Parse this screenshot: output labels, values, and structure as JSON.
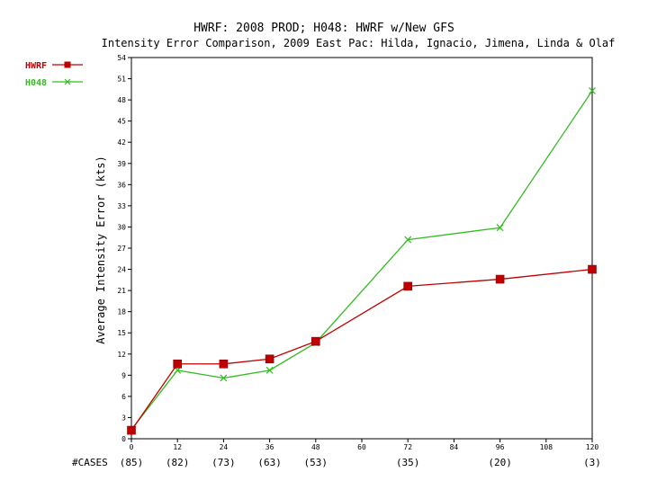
{
  "title": "HWRF: 2008 PROD; H048: HWRF w/New GFS",
  "subtitle": "Intensity Error Comparison, 2009 East Pac: Hilda, Ignacio, Jimena, Linda & Olaf",
  "chart_data": {
    "type": "line",
    "title": "HWRF: 2008 PROD; H048: HWRF w/New GFS",
    "subtitle": "Intensity Error Comparison, 2009 East Pac: Hilda, Ignacio, Jimena, Linda & Olaf",
    "xlabel": "",
    "ylabel": "Average Intensity Error (kts)",
    "x_ticks": [
      0,
      12,
      24,
      36,
      48,
      60,
      72,
      84,
      96,
      108,
      120
    ],
    "y_ticks": [
      0,
      3,
      6,
      9,
      12,
      15,
      18,
      21,
      24,
      27,
      30,
      33,
      36,
      39,
      42,
      45,
      48,
      51,
      54
    ],
    "xlim": [
      0,
      120
    ],
    "ylim": [
      0,
      54
    ],
    "grid": false,
    "legend_position": "top-left",
    "cases_label": "#CASES",
    "cases": [
      {
        "x": 0,
        "label": "(85)"
      },
      {
        "x": 12,
        "label": "(82)"
      },
      {
        "x": 24,
        "label": "(73)"
      },
      {
        "x": 36,
        "label": "(63)"
      },
      {
        "x": 48,
        "label": "(53)"
      },
      {
        "x": 72,
        "label": "(35)"
      },
      {
        "x": 96,
        "label": "(20)"
      },
      {
        "x": 120,
        "label": "(3)"
      }
    ],
    "series": [
      {
        "name": "HWRF",
        "color": "#c00000",
        "marker": "square",
        "x": [
          0,
          12,
          24,
          36,
          48,
          72,
          96,
          120
        ],
        "y": [
          1.2,
          10.6,
          10.6,
          11.3,
          13.8,
          21.6,
          22.6,
          24.0
        ]
      },
      {
        "name": "H048",
        "color": "#33bb22",
        "marker": "x",
        "x": [
          0,
          12,
          24,
          36,
          48,
          72,
          96,
          120
        ],
        "y": [
          1.3,
          9.7,
          8.6,
          9.7,
          13.6,
          28.2,
          29.9,
          49.3
        ]
      }
    ]
  }
}
